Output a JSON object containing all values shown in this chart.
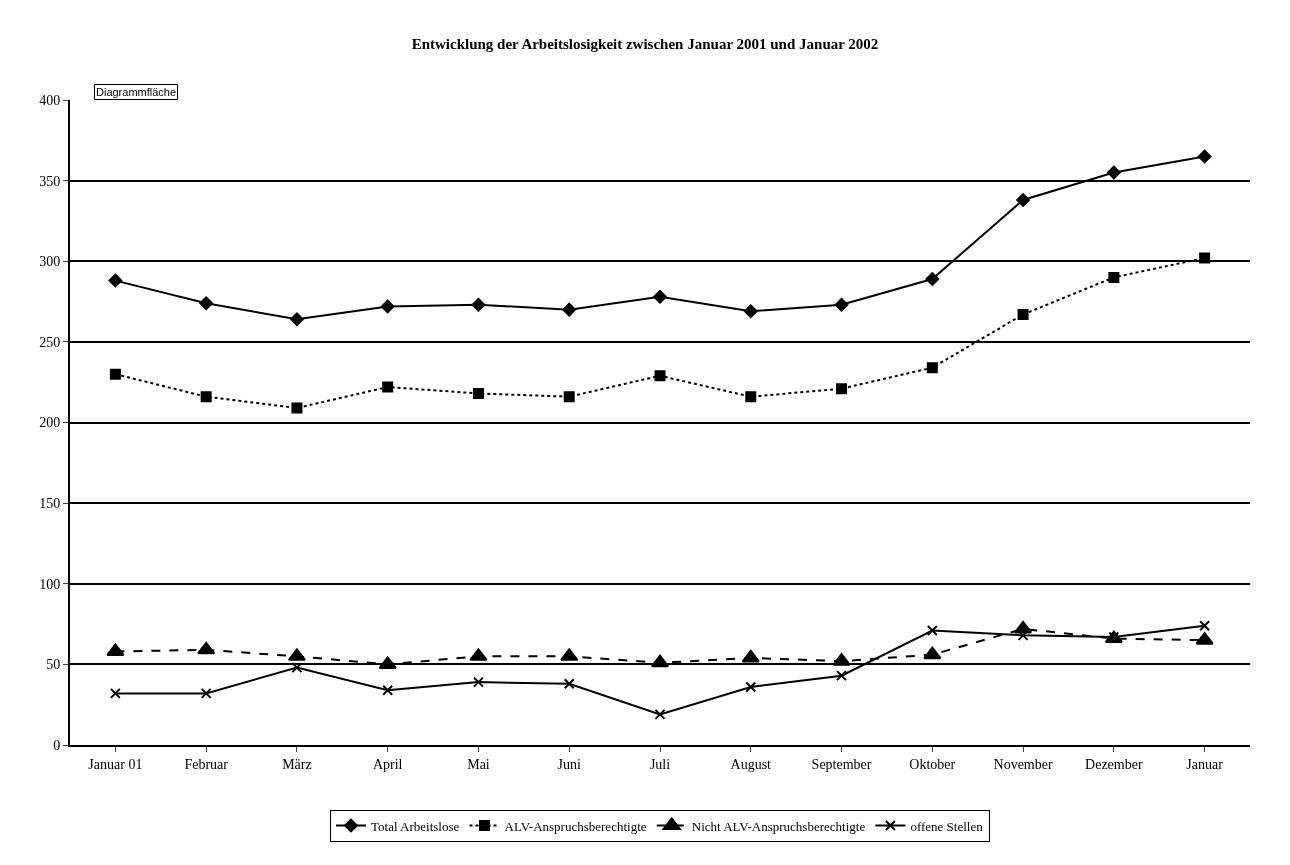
{
  "chart_data": {
    "type": "line",
    "title": "Entwicklung der Arbeitslosigkeit zwischen Januar 2001 und Januar 2002",
    "categories": [
      "Januar 01",
      "Februar",
      "März",
      "April",
      "Mai",
      "Juni",
      "Juli",
      "August",
      "September",
      "Oktober",
      "November",
      "Dezember",
      "Januar"
    ],
    "series": [
      {
        "name": "Total Arbeitslose",
        "color": "#000000",
        "marker": "diamond",
        "line_style": "solid",
        "values": [
          288,
          274,
          264,
          272,
          273,
          270,
          278,
          269,
          273,
          289,
          338,
          355,
          365
        ]
      },
      {
        "name": "ALV-Anspruchsberechtigte",
        "color": "#000000",
        "marker": "square",
        "line_style": "dotted",
        "values": [
          230,
          216,
          209,
          222,
          218,
          216,
          229,
          216,
          221,
          234,
          267,
          290,
          302
        ]
      },
      {
        "name": "Nicht ALV-Anspruchsberechtigte",
        "color": "#000000",
        "marker": "triangle",
        "line_style": "dashed",
        "values": [
          58,
          59,
          55,
          50,
          55,
          55,
          51,
          54,
          52,
          56,
          72,
          66,
          65
        ]
      },
      {
        "name": "offene Stellen",
        "color": "#000000",
        "marker": "cross",
        "line_style": "solid",
        "values": [
          32,
          32,
          48,
          34,
          39,
          38,
          19,
          36,
          43,
          71,
          68,
          67,
          74
        ]
      }
    ],
    "ylim": [
      0,
      400
    ],
    "yticks": [
      0,
      50,
      100,
      150,
      200,
      250,
      300,
      350,
      400
    ],
    "grid": "y",
    "legend": "bottom",
    "annotations": [
      "Diagrammfläche"
    ]
  }
}
